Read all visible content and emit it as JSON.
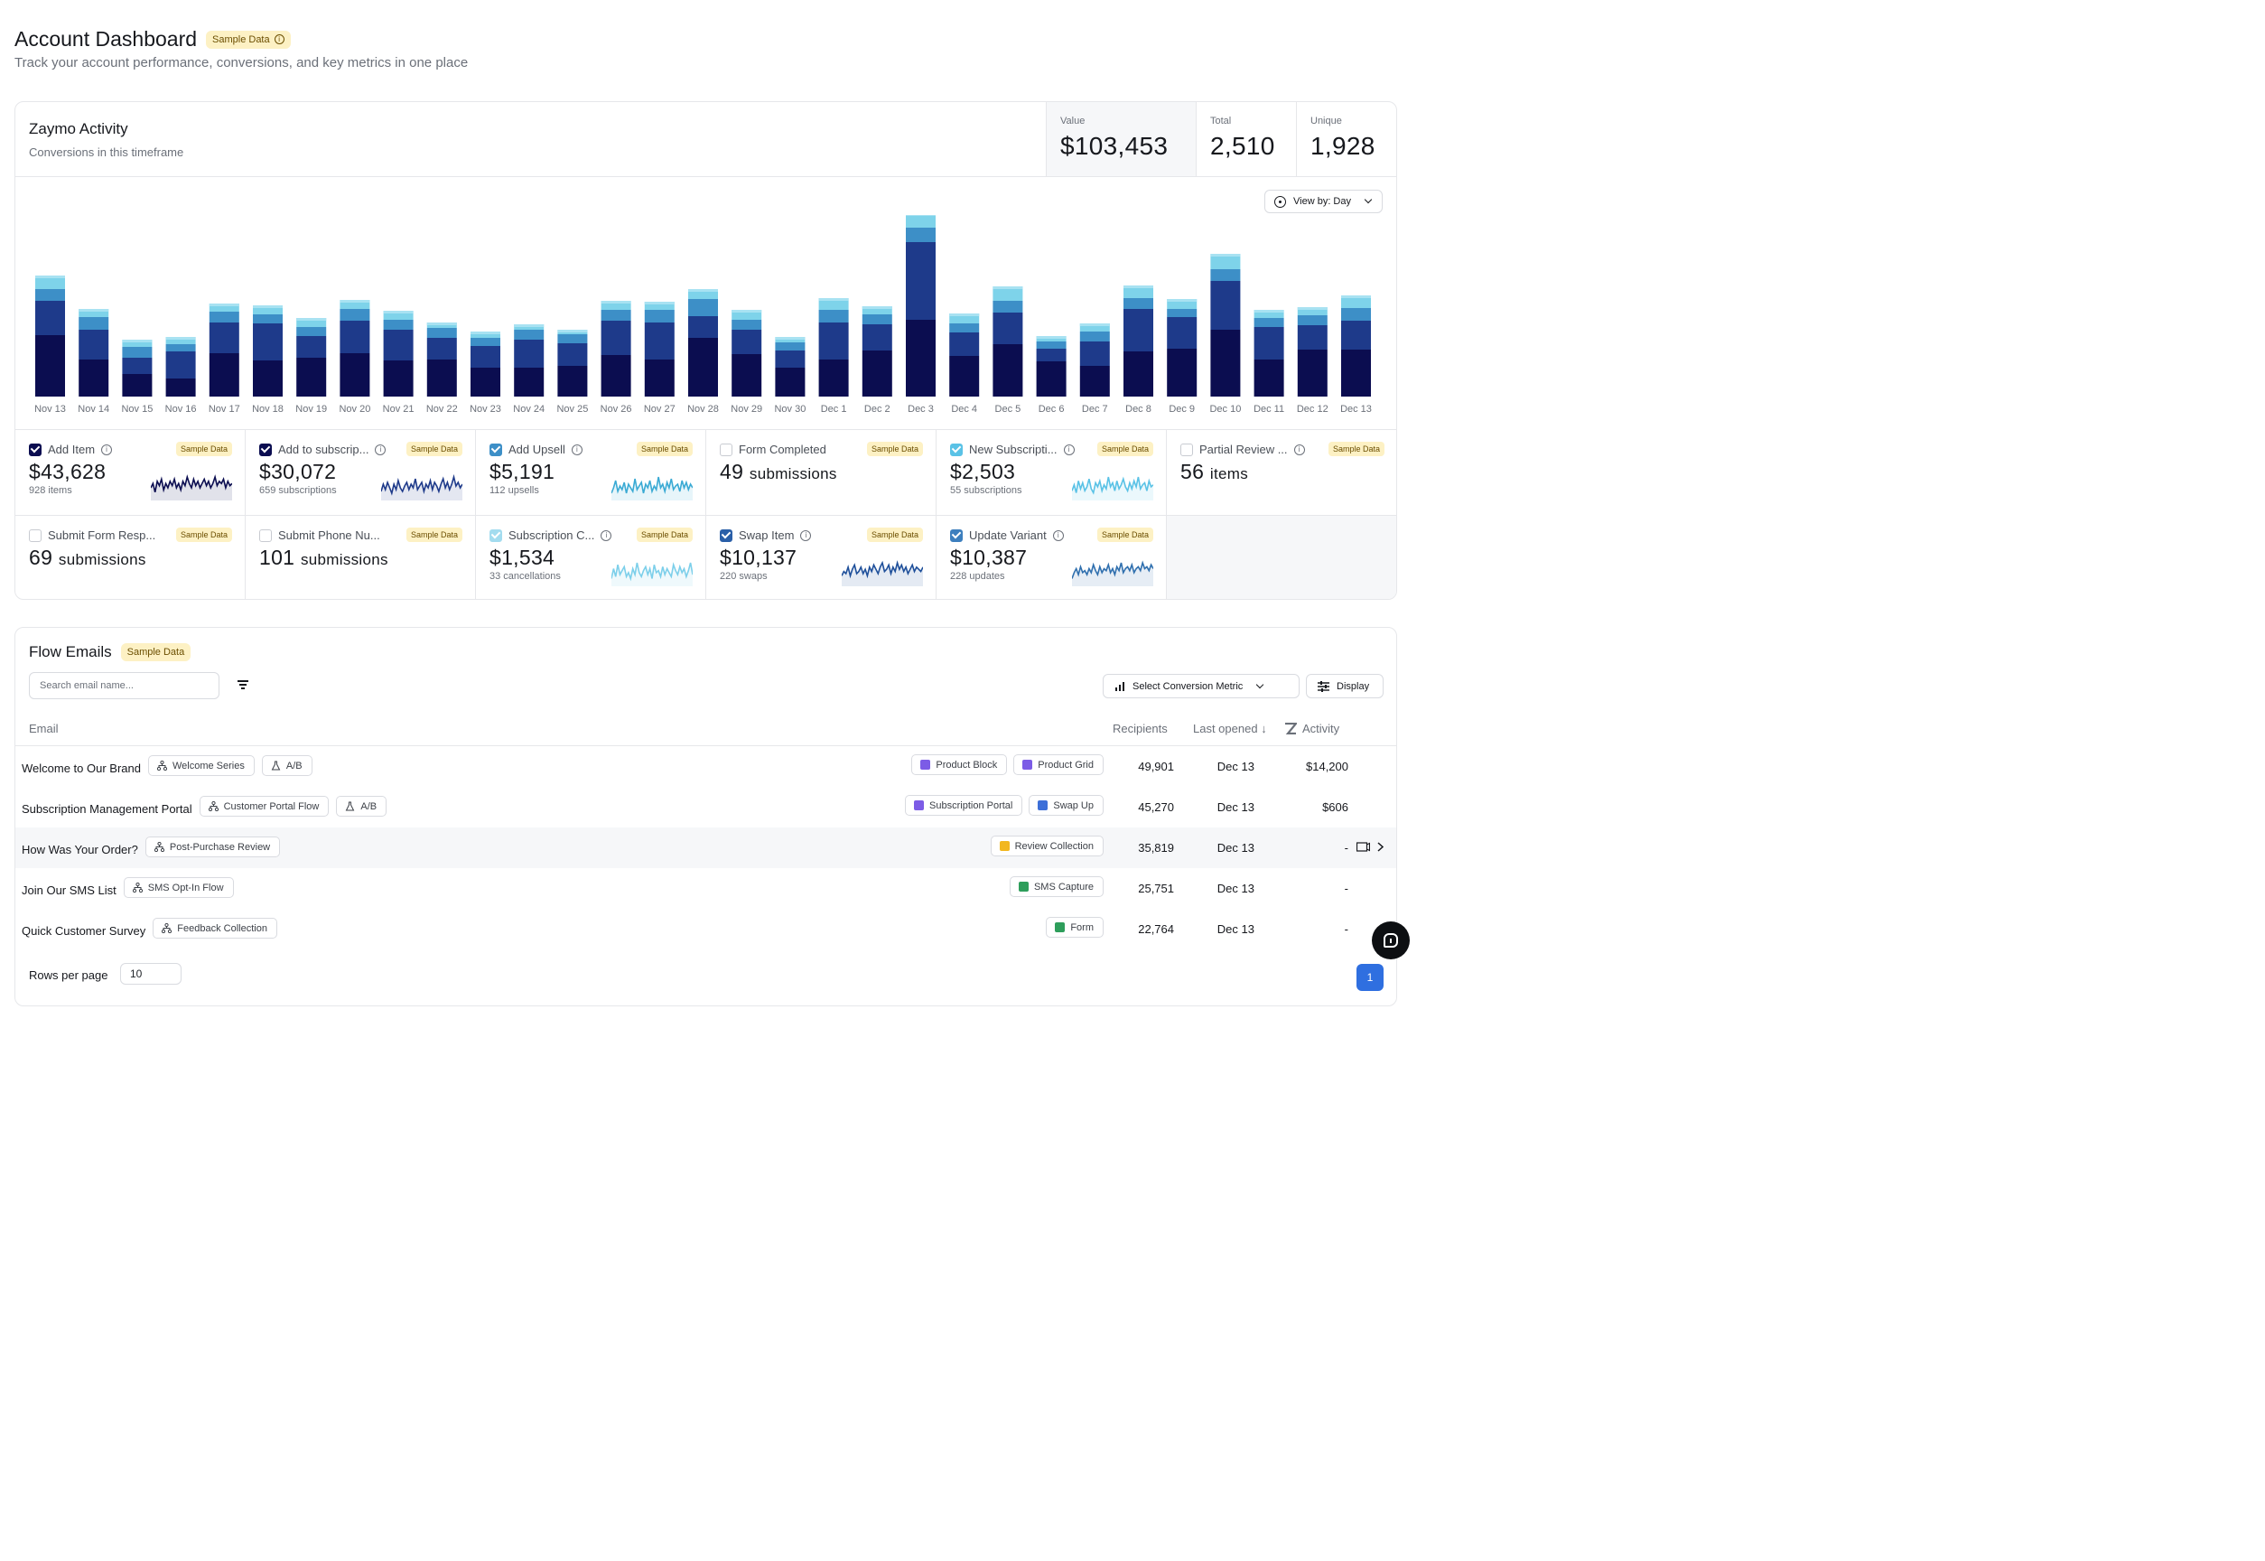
{
  "page": {
    "title": "Account Dashboard",
    "badge": "Sample Data",
    "subtitle": "Track your account performance, conversions, and key metrics in one place"
  },
  "activity": {
    "title": "Zaymo Activity",
    "subtitle": "Conversions in this timeframe",
    "stats": [
      {
        "label": "Value",
        "value": "$103,453"
      },
      {
        "label": "Total",
        "value": "2,510"
      },
      {
        "label": "Unique",
        "value": "1,928"
      }
    ],
    "view_by": "View by: Day"
  },
  "chart_data": {
    "type": "bar",
    "stacked": true,
    "categories": [
      "Nov 13",
      "Nov 14",
      "Nov 15",
      "Nov 16",
      "Nov 17",
      "Nov 18",
      "Nov 19",
      "Nov 20",
      "Nov 21",
      "Nov 22",
      "Nov 23",
      "Nov 24",
      "Nov 25",
      "Nov 26",
      "Nov 27",
      "Nov 28",
      "Nov 29",
      "Nov 30",
      "Dec 1",
      "Dec 2",
      "Dec 3",
      "Dec 4",
      "Dec 5",
      "Dec 6",
      "Dec 7",
      "Dec 8",
      "Dec 9",
      "Dec 10",
      "Dec 11",
      "Dec 12",
      "Dec 13"
    ],
    "colors": [
      "#0b0d50",
      "#1e3a8a",
      "#3d8fc7",
      "#7ed3ea"
    ],
    "series": [
      {
        "values": [
          68,
          41,
          25,
          20,
          48,
          40,
          43,
          48,
          40,
          41,
          32,
          32,
          34,
          46,
          41,
          65,
          47,
          32,
          41,
          51,
          85,
          45,
          58,
          39,
          34,
          50,
          53,
          74,
          41,
          52,
          52
        ]
      },
      {
        "values": [
          38,
          33,
          18,
          30,
          34,
          41,
          24,
          36,
          34,
          24,
          24,
          31,
          25,
          38,
          41,
          24,
          27,
          19,
          41,
          29,
          86,
          26,
          35,
          14,
          27,
          47,
          35,
          54,
          36,
          27,
          32
        ]
      },
      {
        "values": [
          13,
          14,
          12,
          8,
          12,
          10,
          10,
          13,
          11,
          11,
          9,
          11,
          10,
          12,
          14,
          19,
          11,
          9,
          14,
          11,
          16,
          10,
          13,
          8,
          11,
          12,
          9,
          13,
          10,
          11,
          14
        ]
      },
      {
        "values": [
          15,
          9,
          8,
          8,
          9,
          10,
          10,
          10,
          10,
          6,
          7,
          6,
          5,
          10,
          9,
          11,
          11,
          6,
          13,
          9,
          16,
          11,
          16,
          6,
          9,
          14,
          11,
          17,
          9,
          9,
          14
        ]
      }
    ],
    "legend": "none",
    "grid": false
  },
  "metrics": [
    {
      "label": "Add Item",
      "checked": true,
      "check_color": "#0b0d50",
      "info": true,
      "badge": "Sample Data",
      "value": "$43,628",
      "unit": "",
      "sub": "928 items",
      "spark_color": "#0b0d50",
      "spark": [
        5,
        7,
        3,
        8,
        6,
        9,
        4,
        7,
        5,
        8,
        6,
        9,
        5,
        7,
        4,
        8,
        6,
        10,
        7,
        5,
        9,
        6,
        8,
        5,
        7,
        9,
        6,
        8,
        5,
        7,
        10,
        6,
        8,
        7,
        9,
        5,
        8,
        6,
        7
      ]
    },
    {
      "label": "Add to subscrip...",
      "checked": true,
      "check_color": "#0b0d50",
      "info": true,
      "badge": "Sample Data",
      "value": "$30,072",
      "unit": "",
      "sub": "659 subscriptions",
      "spark_color": "#1e3a8a",
      "spark": [
        4,
        8,
        5,
        9,
        6,
        3,
        8,
        5,
        10,
        6,
        4,
        7,
        9,
        5,
        8,
        6,
        11,
        5,
        7,
        9,
        4,
        8,
        6,
        10,
        5,
        9,
        7,
        4,
        8,
        11,
        6,
        9,
        5,
        8,
        12,
        7,
        9,
        6,
        8
      ]
    },
    {
      "label": "Add Upsell",
      "checked": true,
      "check_color": "#3d8fc7",
      "info": true,
      "badge": "Sample Data",
      "value": "$5,191",
      "unit": "",
      "sub": "112 upsells",
      "spark_color": "#3aaad4",
      "spark": [
        3,
        6,
        10,
        4,
        7,
        5,
        9,
        3,
        8,
        6,
        4,
        11,
        5,
        7,
        9,
        3,
        8,
        6,
        10,
        4,
        7,
        5,
        12,
        6,
        8,
        4,
        9,
        6,
        11,
        5,
        7,
        8,
        4,
        10,
        6,
        9,
        5,
        8,
        6
      ]
    },
    {
      "label": "Form Completed",
      "checked": false,
      "info": false,
      "badge": "Sample Data",
      "value": "49",
      "unit": "submissions",
      "sub": ""
    },
    {
      "label": "New Subscripti...",
      "checked": true,
      "check_color": "#5ac2e6",
      "info": true,
      "badge": "Sample Data",
      "value": "$2,503",
      "unit": "",
      "sub": "55 subscriptions",
      "spark_color": "#5ac2e6",
      "spark": [
        4,
        7,
        3,
        9,
        5,
        8,
        4,
        6,
        10,
        5,
        3,
        8,
        6,
        9,
        4,
        7,
        5,
        11,
        6,
        8,
        4,
        9,
        5,
        7,
        10,
        6,
        4,
        8,
        5,
        9,
        6,
        11,
        5,
        7,
        8,
        4,
        9,
        6,
        7
      ]
    },
    {
      "label": "Partial Review ...",
      "checked": false,
      "info": true,
      "badge": "Sample Data",
      "value": "56",
      "unit": "items",
      "sub": ""
    },
    {
      "label": "Submit Form Resp...",
      "checked": false,
      "info": false,
      "badge": "Sample Data",
      "value": "69",
      "unit": "submissions",
      "sub": ""
    },
    {
      "label": "Submit Phone Nu...",
      "checked": false,
      "info": false,
      "badge": "Sample Data",
      "value": "101",
      "unit": "submissions",
      "sub": ""
    },
    {
      "label": "Subscription C...",
      "checked": true,
      "check_color": "#a3dcef",
      "info": true,
      "badge": "Sample Data",
      "value": "$1,534",
      "unit": "",
      "sub": "33 cancellations",
      "spark_color": "#7ccfea",
      "spark": [
        3,
        8,
        4,
        10,
        5,
        7,
        9,
        4,
        6,
        3,
        8,
        5,
        11,
        6,
        4,
        7,
        9,
        5,
        8,
        3,
        10,
        6,
        7,
        4,
        9,
        5,
        8,
        6,
        4,
        10,
        7,
        5,
        9,
        6,
        8,
        4,
        7,
        11,
        5
      ]
    },
    {
      "label": "Swap Item",
      "checked": true,
      "check_color": "#2a5fa8",
      "info": true,
      "badge": "Sample Data",
      "value": "$10,137",
      "unit": "",
      "sub": "220 swaps",
      "spark_color": "#1e4f9a",
      "spark": [
        4,
        6,
        5,
        8,
        4,
        7,
        9,
        5,
        6,
        8,
        5,
        7,
        4,
        8,
        6,
        9,
        7,
        5,
        8,
        10,
        6,
        7,
        9,
        5,
        8,
        6,
        10,
        7,
        9,
        6,
        8,
        5,
        7,
        9,
        6,
        8,
        7,
        6,
        8
      ]
    },
    {
      "label": "Update Variant",
      "checked": true,
      "check_color": "#3d7fbe",
      "info": true,
      "badge": "Sample Data",
      "value": "$10,387",
      "unit": "",
      "sub": "228 updates",
      "spark_color": "#2f6fae",
      "spark": [
        3,
        6,
        8,
        5,
        9,
        6,
        7,
        5,
        8,
        6,
        10,
        7,
        5,
        9,
        6,
        8,
        7,
        10,
        6,
        8,
        5,
        9,
        7,
        11,
        6,
        8,
        9,
        7,
        10,
        6,
        8,
        9,
        7,
        11,
        8,
        9,
        7,
        10,
        8
      ]
    }
  ],
  "flow": {
    "title": "Flow Emails",
    "badge": "Sample Data",
    "search_placeholder": "Search email name...",
    "metric_button": "Select Conversion Metric",
    "display_button": "Display",
    "columns": {
      "email": "Email",
      "recipients": "Recipients",
      "last_opened": "Last opened",
      "activity": "Activity"
    },
    "rows": [
      {
        "name": "Welcome to Our Brand",
        "flow_tag": "Welcome Series",
        "ab": "A/B",
        "products": [
          {
            "label": "Product Block",
            "color": "#7c5ce6"
          },
          {
            "label": "Product Grid",
            "color": "#7c5ce6"
          }
        ],
        "recipients": "49,901",
        "last_opened": "Dec 13",
        "activity": "$14,200"
      },
      {
        "name": "Subscription Management Portal",
        "flow_tag": "Customer Portal Flow",
        "ab": "A/B",
        "products": [
          {
            "label": "Subscription Portal",
            "color": "#7c5ce6"
          },
          {
            "label": "Swap Up",
            "color": "#3d6fd8"
          }
        ],
        "recipients": "45,270",
        "last_opened": "Dec 13",
        "activity": "$606"
      },
      {
        "name": "How Was Your Order?",
        "flow_tag": "Post-Purchase Review",
        "ab": "",
        "products": [
          {
            "label": "Review Collection",
            "color": "#f2b71f"
          }
        ],
        "recipients": "35,819",
        "last_opened": "Dec 13",
        "activity": "-"
      },
      {
        "name": "Join Our SMS List",
        "flow_tag": "SMS Opt-In Flow",
        "ab": "",
        "products": [
          {
            "label": "SMS Capture",
            "color": "#2e9e5b"
          }
        ],
        "recipients": "25,751",
        "last_opened": "Dec 13",
        "activity": "-"
      },
      {
        "name": "Quick Customer Survey",
        "flow_tag": "Feedback Collection",
        "ab": "",
        "products": [
          {
            "label": "Form",
            "color": "#2e9e5b"
          }
        ],
        "recipients": "22,764",
        "last_opened": "Dec 13",
        "activity": "-"
      }
    ],
    "rows_per_page_label": "Rows per page",
    "rows_per_page": "10",
    "page": "1"
  }
}
